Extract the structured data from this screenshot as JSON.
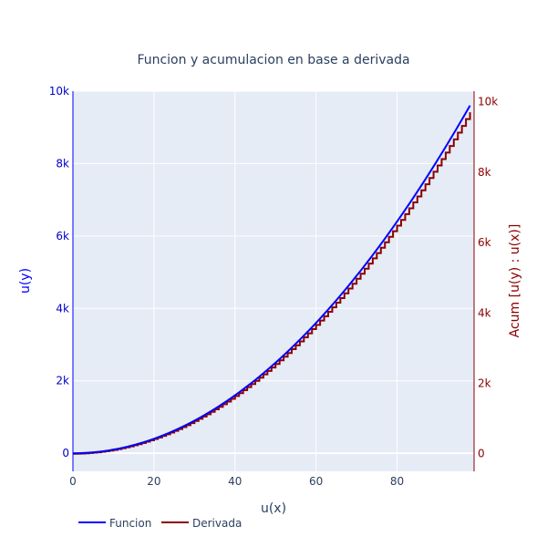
{
  "chart_data": {
    "type": "line",
    "title": "Funcion y acumulacion en base a derivada",
    "xlabel": "u(x)",
    "ylabel_left": "u(y)",
    "ylabel_right": "Acum [u(y) : u(x)]",
    "xlim": [
      0,
      99
    ],
    "ylim_left": [
      -500,
      10000
    ],
    "ylim_right": [
      -500,
      10300
    ],
    "x_ticks": [
      "0",
      "20",
      "40",
      "60",
      "80"
    ],
    "x_tick_values": [
      0,
      20,
      40,
      60,
      80
    ],
    "y_left_ticks": [
      "0",
      "2k",
      "4k",
      "6k",
      "8k",
      "10k"
    ],
    "y_left_tick_values": [
      0,
      2000,
      4000,
      6000,
      8000,
      10000
    ],
    "y_right_ticks": [
      "0",
      "2k",
      "4k",
      "6k",
      "8k",
      "10k"
    ],
    "y_right_tick_values": [
      0,
      2000,
      4000,
      6000,
      8000,
      10000
    ],
    "series": [
      {
        "name": "Funcion",
        "axis": "left",
        "color": "#0000ff",
        "function": "y = x^2",
        "x_start": 0,
        "x_end": 98,
        "step": 1
      },
      {
        "name": "Derivada",
        "axis": "right",
        "color": "#8b0000",
        "function": "cumulative sum of 2x (steps)",
        "x_start": 0,
        "x_end": 98,
        "step": 1
      }
    ],
    "legend": "bottom-left",
    "grid": true,
    "colors": {
      "plot_bg": "#e5ecf6",
      "left_axis": "#0000ff",
      "right_axis": "#8b0000",
      "text": "#2a3f5f"
    }
  }
}
